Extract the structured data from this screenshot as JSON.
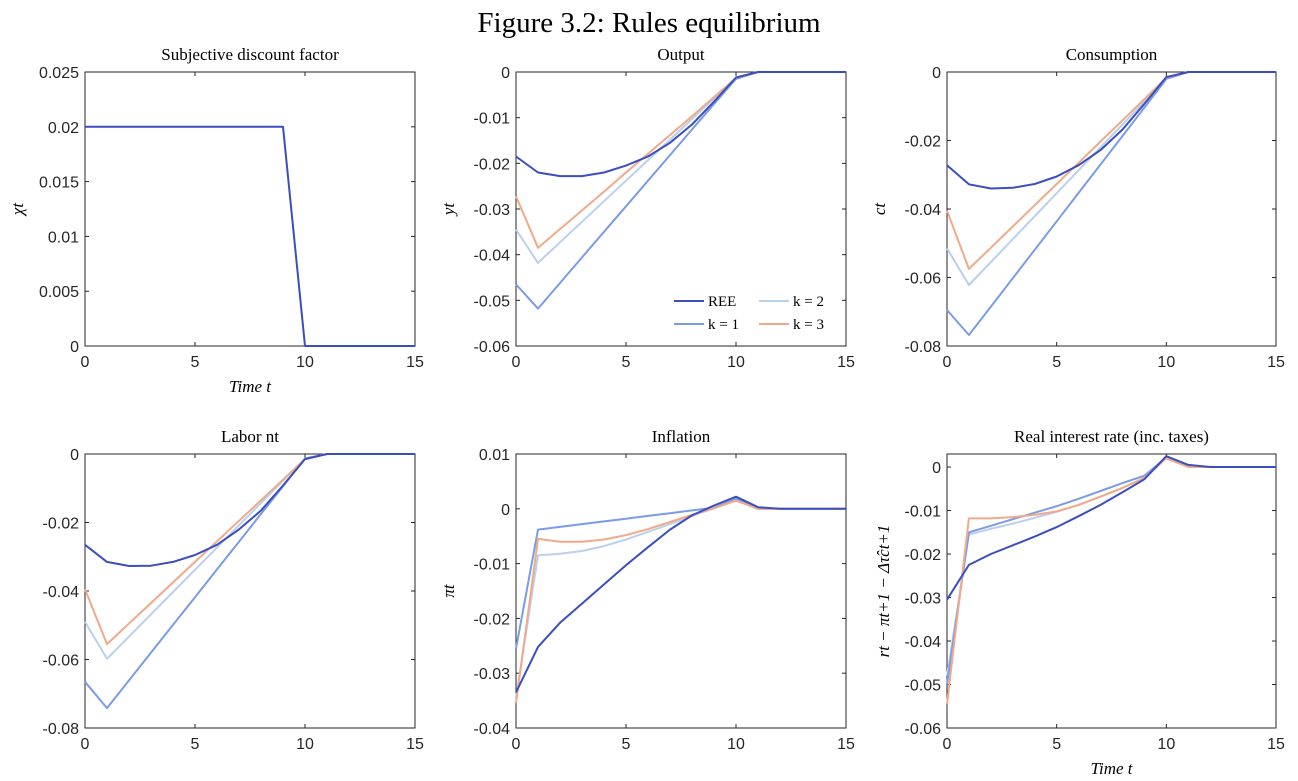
{
  "figure_title": "Figure 3.2: Rules equilibrium",
  "colors": {
    "REE": "#3a4fbf",
    "k1": "#7a9ce8",
    "k2": "#b9d0ee",
    "k3": "#f2a988",
    "axis": "#262626"
  },
  "legend": {
    "entries": [
      "REE",
      "k = 2",
      "k = 1",
      "k = 3"
    ],
    "placement": "inside output panel, lower-right"
  },
  "chart_data": [
    {
      "type": "line",
      "title": "Subjective discount factor",
      "xlabel": "Time t",
      "ylabel": "χt",
      "xlim": [
        0,
        15
      ],
      "ylim": [
        0,
        0.025
      ],
      "xticks": [
        "0",
        "5",
        "10",
        "15"
      ],
      "yticks": [
        "0",
        "0.005",
        "0.01",
        "0.015",
        "0.02",
        "0.025"
      ],
      "x": [
        0,
        9,
        10,
        15
      ],
      "series": [
        {
          "key": "REE",
          "values": [
            0.02,
            0.02,
            0,
            0
          ]
        }
      ]
    },
    {
      "type": "line",
      "title": "Output",
      "xlabel": "",
      "ylabel": "yt",
      "xlim": [
        0,
        15
      ],
      "ylim": [
        -0.06,
        0
      ],
      "xticks": [
        "0",
        "5",
        "10",
        "15"
      ],
      "yticks": [
        "-0.06",
        "-0.05",
        "-0.04",
        "-0.03",
        "-0.02",
        "-0.01",
        "0"
      ],
      "x": [
        0,
        1,
        2,
        3,
        4,
        5,
        6,
        7,
        8,
        9,
        10,
        11,
        12,
        13,
        14,
        15
      ],
      "series": [
        {
          "name": "REE",
          "key": "REE",
          "values": [
            -0.0185,
            -0.022,
            -0.0228,
            -0.0228,
            -0.022,
            -0.0205,
            -0.0185,
            -0.0155,
            -0.0115,
            -0.0065,
            -0.0012,
            0,
            0,
            0,
            0,
            0
          ]
        },
        {
          "name": "k = 1",
          "key": "k1",
          "values": [
            -0.0465,
            -0.0518,
            -0.0462,
            -0.0406,
            -0.035,
            -0.0294,
            -0.0238,
            -0.0182,
            -0.0126,
            -0.007,
            -0.0015,
            0,
            0,
            0,
            0,
            0
          ]
        },
        {
          "name": "k = 2",
          "key": "k2",
          "values": [
            -0.0345,
            -0.0418,
            -0.0373,
            -0.0328,
            -0.0283,
            -0.0238,
            -0.0193,
            -0.0148,
            -0.0103,
            -0.0058,
            -0.0013,
            0,
            0,
            0,
            0,
            0
          ]
        },
        {
          "name": "k = 3",
          "key": "k3",
          "values": [
            -0.0272,
            -0.0385,
            -0.0344,
            -0.0303,
            -0.0262,
            -0.022,
            -0.0179,
            -0.0138,
            -0.0097,
            -0.0055,
            -0.0013,
            0,
            0,
            0,
            0,
            0
          ]
        }
      ]
    },
    {
      "type": "line",
      "title": "Consumption",
      "xlabel": "",
      "ylabel": "ct",
      "xlim": [
        0,
        15
      ],
      "ylim": [
        -0.08,
        0
      ],
      "xticks": [
        "0",
        "5",
        "10",
        "15"
      ],
      "yticks": [
        "-0.08",
        "-0.06",
        "-0.04",
        "-0.02",
        "0"
      ],
      "x": [
        0,
        1,
        2,
        3,
        4,
        5,
        6,
        7,
        8,
        9,
        10,
        11,
        12,
        13,
        14,
        15
      ],
      "series": [
        {
          "name": "REE",
          "key": "REE",
          "values": [
            -0.0272,
            -0.0328,
            -0.034,
            -0.0338,
            -0.0327,
            -0.0305,
            -0.0272,
            -0.0228,
            -0.0168,
            -0.0093,
            -0.0015,
            0,
            0,
            0,
            0,
            0
          ]
        },
        {
          "name": "k = 1",
          "key": "k1",
          "values": [
            -0.0695,
            -0.0768,
            -0.0685,
            -0.0602,
            -0.0519,
            -0.0436,
            -0.0353,
            -0.027,
            -0.0187,
            -0.0104,
            -0.002,
            0,
            0,
            0,
            0,
            0
          ]
        },
        {
          "name": "k = 2",
          "key": "k2",
          "values": [
            -0.0515,
            -0.0622,
            -0.0555,
            -0.0488,
            -0.0421,
            -0.0354,
            -0.0287,
            -0.022,
            -0.0153,
            -0.0086,
            -0.0018,
            0,
            0,
            0,
            0,
            0
          ]
        },
        {
          "name": "k = 3",
          "key": "k3",
          "values": [
            -0.0405,
            -0.0575,
            -0.0513,
            -0.0451,
            -0.0389,
            -0.0327,
            -0.0265,
            -0.0203,
            -0.0141,
            -0.0079,
            -0.0017,
            0,
            0,
            0,
            0,
            0
          ]
        }
      ]
    },
    {
      "type": "line",
      "title": "Labor nt",
      "xlabel": "",
      "ylabel": "",
      "xlim": [
        0,
        15
      ],
      "ylim": [
        -0.08,
        0
      ],
      "xticks": [
        "0",
        "5",
        "10",
        "15"
      ],
      "yticks": [
        "-0.08",
        "-0.06",
        "-0.04",
        "-0.02",
        "0"
      ],
      "x": [
        0,
        1,
        2,
        3,
        4,
        5,
        6,
        7,
        8,
        9,
        10,
        11,
        12,
        13,
        14,
        15
      ],
      "series": [
        {
          "name": "REE",
          "key": "REE",
          "values": [
            -0.0265,
            -0.0315,
            -0.0327,
            -0.0326,
            -0.0315,
            -0.0295,
            -0.0265,
            -0.022,
            -0.0165,
            -0.0092,
            -0.0015,
            0,
            0,
            0,
            0,
            0
          ]
        },
        {
          "name": "k = 1",
          "key": "k1",
          "values": [
            -0.0665,
            -0.0742,
            -0.0661,
            -0.058,
            -0.0499,
            -0.0418,
            -0.0337,
            -0.0256,
            -0.0175,
            -0.0094,
            -0.0013,
            0,
            0,
            0,
            0,
            0
          ]
        },
        {
          "name": "k = 2",
          "key": "k2",
          "values": [
            -0.049,
            -0.0598,
            -0.0533,
            -0.0468,
            -0.0403,
            -0.0338,
            -0.0273,
            -0.0208,
            -0.0143,
            -0.0078,
            -0.0013,
            0,
            0,
            0,
            0,
            0
          ]
        },
        {
          "name": "k = 3",
          "key": "k3",
          "values": [
            -0.0395,
            -0.0555,
            -0.0495,
            -0.0435,
            -0.0375,
            -0.0315,
            -0.0255,
            -0.0195,
            -0.0135,
            -0.0075,
            -0.0015,
            0,
            0,
            0,
            0,
            0
          ]
        }
      ]
    },
    {
      "type": "line",
      "title": "Inflation",
      "xlabel": "",
      "ylabel": "πt",
      "xlim": [
        0,
        15
      ],
      "ylim": [
        -0.04,
        0.01
      ],
      "xticks": [
        "0",
        "5",
        "10",
        "15"
      ],
      "yticks": [
        "-0.04",
        "-0.03",
        "-0.02",
        "-0.01",
        "0",
        "0.01"
      ],
      "x": [
        0,
        1,
        2,
        3,
        4,
        5,
        6,
        7,
        8,
        9,
        10,
        11,
        12,
        13,
        14,
        15
      ],
      "series": [
        {
          "name": "REE",
          "key": "REE",
          "values": [
            -0.0335,
            -0.0252,
            -0.0208,
            -0.0173,
            -0.0138,
            -0.0103,
            -0.007,
            -0.0038,
            -0.0012,
            0.0006,
            0.0022,
            0.0003,
            0,
            0,
            0,
            0
          ]
        },
        {
          "name": "k = 1",
          "key": "k1",
          "values": [
            -0.0255,
            -0.0038,
            -0.0033,
            -0.0028,
            -0.0023,
            -0.0018,
            -0.0013,
            -0.0008,
            -0.0003,
            0.0002,
            0.0018,
            0,
            0,
            0,
            0,
            0
          ]
        },
        {
          "name": "k = 2",
          "key": "k2",
          "values": [
            -0.0345,
            -0.0085,
            -0.0082,
            -0.0077,
            -0.0068,
            -0.0056,
            -0.0042,
            -0.0028,
            -0.0013,
            0.0001,
            0.0015,
            0,
            0,
            0,
            0,
            0
          ]
        },
        {
          "name": "k = 3",
          "key": "k3",
          "values": [
            -0.0355,
            -0.0055,
            -0.006,
            -0.006,
            -0.0056,
            -0.0048,
            -0.0037,
            -0.0024,
            -0.0011,
            0.0001,
            0.0015,
            0,
            0,
            0,
            0,
            0
          ]
        }
      ]
    },
    {
      "type": "line",
      "title": "Real interest rate (inc. taxes)",
      "xlabel": "Time t",
      "ylabel": "rt − πt+1 − Δτ̂ct+1",
      "xlim": [
        0,
        15
      ],
      "ylim": [
        -0.06,
        0.003
      ],
      "xticks": [
        "0",
        "5",
        "10",
        "15"
      ],
      "yticks": [
        "-0.06",
        "-0.05",
        "-0.04",
        "-0.03",
        "-0.02",
        "-0.01",
        "0"
      ],
      "x": [
        0,
        1,
        2,
        3,
        4,
        5,
        6,
        7,
        8,
        9,
        10,
        11,
        12,
        13,
        14,
        15
      ],
      "series": [
        {
          "name": "REE",
          "key": "REE",
          "values": [
            -0.0305,
            -0.0225,
            -0.02,
            -0.018,
            -0.016,
            -0.0138,
            -0.0113,
            -0.0087,
            -0.0058,
            -0.0028,
            0.0025,
            0.0005,
            0,
            0,
            0,
            0
          ]
        },
        {
          "name": "k = 1",
          "key": "k1",
          "values": [
            -0.05,
            -0.015,
            -0.0135,
            -0.012,
            -0.0105,
            -0.009,
            -0.0073,
            -0.0055,
            -0.0037,
            -0.002,
            0.0022,
            0,
            0,
            0,
            0,
            0
          ]
        },
        {
          "name": "k = 2",
          "key": "k2",
          "values": [
            -0.048,
            -0.0155,
            -0.0142,
            -0.013,
            -0.0117,
            -0.0103,
            -0.0087,
            -0.0068,
            -0.0048,
            -0.0025,
            0.002,
            0,
            0,
            0,
            0,
            0
          ]
        },
        {
          "name": "k = 3",
          "key": "k3",
          "values": [
            -0.0545,
            -0.0118,
            -0.0118,
            -0.0115,
            -0.011,
            -0.0102,
            -0.0087,
            -0.0068,
            -0.0048,
            -0.0025,
            0.002,
            0,
            0,
            0,
            0,
            0
          ]
        }
      ]
    }
  ]
}
